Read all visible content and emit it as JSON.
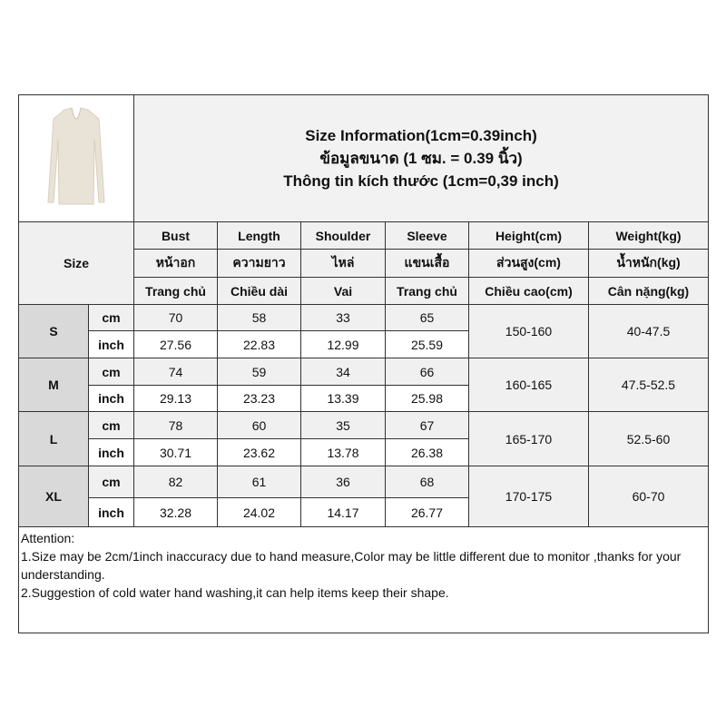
{
  "header": {
    "title_lines": [
      "Size Information(1cm=0.39inch)",
      "ข้อมูลขนาด (1 ซม. = 0.39 นิ้ว)",
      "Thông tin kích thước (1cm=0,39 inch)"
    ],
    "size_label": "Size",
    "product_image": "beige long-sleeve v-neck top"
  },
  "columns": [
    {
      "en": "Bust",
      "th": "หน้าอก",
      "vi": "Trang chủ"
    },
    {
      "en": "Length",
      "th": "ความยาว",
      "vi": "Chiều dài"
    },
    {
      "en": "Shoulder",
      "th": "ไหล่",
      "vi": "Vai"
    },
    {
      "en": "Sleeve",
      "th": "แขนเสื้อ",
      "vi": "Trang chủ"
    },
    {
      "en": "Height(cm)",
      "th": "ส่วนสูง(cm)",
      "vi": "Chiều cao(cm)"
    },
    {
      "en": "Weight(kg)",
      "th": "น้ำหนัก(kg)",
      "vi": "Cân nặng(kg)"
    }
  ],
  "units": {
    "cm": "cm",
    "inch": "inch"
  },
  "sizes": [
    {
      "size": "S",
      "cm": [
        "70",
        "58",
        "33",
        "65"
      ],
      "inch": [
        "27.56",
        "22.83",
        "12.99",
        "25.59"
      ],
      "height": "150-160",
      "weight": "40-47.5"
    },
    {
      "size": "M",
      "cm": [
        "74",
        "59",
        "34",
        "66"
      ],
      "inch": [
        "29.13",
        "23.23",
        "13.39",
        "25.98"
      ],
      "height": "160-165",
      "weight": "47.5-52.5"
    },
    {
      "size": "L",
      "cm": [
        "78",
        "60",
        "35",
        "67"
      ],
      "inch": [
        "30.71",
        "23.62",
        "13.78",
        "26.38"
      ],
      "height": "165-170",
      "weight": "52.5-60"
    },
    {
      "size": "XL",
      "cm": [
        "82",
        "61",
        "36",
        "68"
      ],
      "inch": [
        "32.28",
        "24.02",
        "14.17",
        "26.77"
      ],
      "height": "170-175",
      "weight": "60-70"
    }
  ],
  "attention": {
    "heading": "Attention:",
    "notes": [
      "1.Size may be 2cm/1inch inaccuracy due to hand measure,Color may be little different due to monitor ,thanks for your understanding.",
      "2.Suggestion of cold water hand washing,it can help items keep their shape."
    ]
  }
}
